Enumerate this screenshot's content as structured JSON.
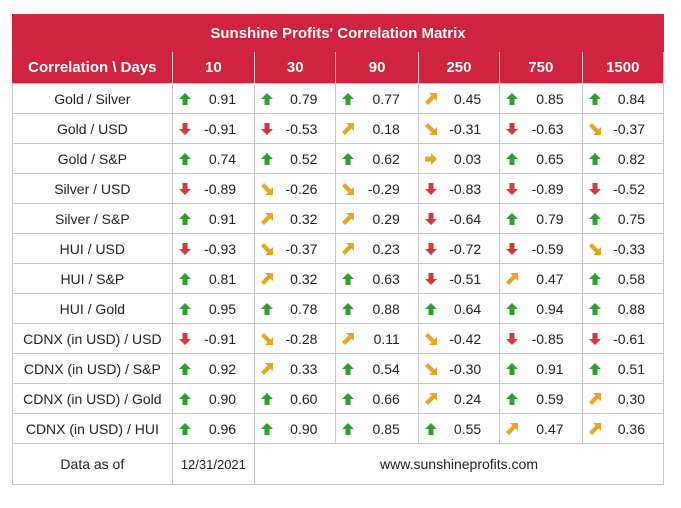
{
  "title": "Sunshine Profits' Correlation Matrix",
  "header": {
    "label_col": "Correlation \\ Days",
    "days": [
      "10",
      "30",
      "90",
      "250",
      "750",
      "1500"
    ]
  },
  "arrow_colors": {
    "up": "#2e9e2e",
    "down": "#d6383a",
    "up-right": "#e9a620",
    "down-right": "#e9a620",
    "right": "#e9a620"
  },
  "rows": [
    {
      "label": "Gold / Silver",
      "cells": [
        {
          "dir": "up",
          "value": "0.91"
        },
        {
          "dir": "up",
          "value": "0.79"
        },
        {
          "dir": "up",
          "value": "0.77"
        },
        {
          "dir": "up-right",
          "value": "0.45"
        },
        {
          "dir": "up",
          "value": "0.85"
        },
        {
          "dir": "up",
          "value": "0.84"
        }
      ]
    },
    {
      "label": "Gold / USD",
      "cells": [
        {
          "dir": "down",
          "value": "-0.91"
        },
        {
          "dir": "down",
          "value": "-0.53"
        },
        {
          "dir": "up-right",
          "value": "0.18"
        },
        {
          "dir": "down-right",
          "value": "-0.31"
        },
        {
          "dir": "down",
          "value": "-0.63"
        },
        {
          "dir": "down-right",
          "value": "-0.37"
        }
      ]
    },
    {
      "label": "Gold / S&P",
      "cells": [
        {
          "dir": "up",
          "value": "0.74"
        },
        {
          "dir": "up",
          "value": "0.52"
        },
        {
          "dir": "up",
          "value": "0.62"
        },
        {
          "dir": "right",
          "value": "0.03"
        },
        {
          "dir": "up",
          "value": "0.65"
        },
        {
          "dir": "up",
          "value": "0.82"
        }
      ]
    },
    {
      "label": "Silver / USD",
      "cells": [
        {
          "dir": "down",
          "value": "-0.89"
        },
        {
          "dir": "down-right",
          "value": "-0.26"
        },
        {
          "dir": "down-right",
          "value": "-0.29"
        },
        {
          "dir": "down",
          "value": "-0.83"
        },
        {
          "dir": "down",
          "value": "-0.89"
        },
        {
          "dir": "down",
          "value": "-0.52"
        }
      ]
    },
    {
      "label": "Silver / S&P",
      "cells": [
        {
          "dir": "up",
          "value": "0.91"
        },
        {
          "dir": "up-right",
          "value": "0.32"
        },
        {
          "dir": "up-right",
          "value": "0.29"
        },
        {
          "dir": "down",
          "value": "-0.64"
        },
        {
          "dir": "up",
          "value": "0.79"
        },
        {
          "dir": "up",
          "value": "0.75"
        }
      ]
    },
    {
      "label": "HUI / USD",
      "cells": [
        {
          "dir": "down",
          "value": "-0.93"
        },
        {
          "dir": "down-right",
          "value": "-0.37"
        },
        {
          "dir": "up-right",
          "value": "0.23"
        },
        {
          "dir": "down",
          "value": "-0.72"
        },
        {
          "dir": "down",
          "value": "-0.59"
        },
        {
          "dir": "down-right",
          "value": "-0.33"
        }
      ]
    },
    {
      "label": "HUI / S&P",
      "cells": [
        {
          "dir": "up",
          "value": "0.81"
        },
        {
          "dir": "up-right",
          "value": "0.32"
        },
        {
          "dir": "up",
          "value": "0.63"
        },
        {
          "dir": "down",
          "value": "-0.51"
        },
        {
          "dir": "up-right",
          "value": "0.47"
        },
        {
          "dir": "up",
          "value": "0.58"
        }
      ]
    },
    {
      "label": "HUI / Gold",
      "cells": [
        {
          "dir": "up",
          "value": "0.95"
        },
        {
          "dir": "up",
          "value": "0.78"
        },
        {
          "dir": "up",
          "value": "0.88"
        },
        {
          "dir": "up",
          "value": "0.64"
        },
        {
          "dir": "up",
          "value": "0.94"
        },
        {
          "dir": "up",
          "value": "0.88"
        }
      ]
    },
    {
      "label": "CDNX (in USD) / USD",
      "cells": [
        {
          "dir": "down",
          "value": "-0.91"
        },
        {
          "dir": "down-right",
          "value": "-0.28"
        },
        {
          "dir": "up-right",
          "value": "0.11"
        },
        {
          "dir": "down-right",
          "value": "-0.42"
        },
        {
          "dir": "down",
          "value": "-0.85"
        },
        {
          "dir": "down",
          "value": "-0.61"
        }
      ]
    },
    {
      "label": "CDNX (in USD) / S&P",
      "cells": [
        {
          "dir": "up",
          "value": "0.92"
        },
        {
          "dir": "up-right",
          "value": "0.33"
        },
        {
          "dir": "up",
          "value": "0.54"
        },
        {
          "dir": "down-right",
          "value": "-0.30"
        },
        {
          "dir": "up",
          "value": "0.91"
        },
        {
          "dir": "up",
          "value": "0.51"
        }
      ]
    },
    {
      "label": "CDNX (in USD) / Gold",
      "cells": [
        {
          "dir": "up",
          "value": "0.90"
        },
        {
          "dir": "up",
          "value": "0.60"
        },
        {
          "dir": "up",
          "value": "0.66"
        },
        {
          "dir": "up-right",
          "value": "0.24"
        },
        {
          "dir": "up",
          "value": "0.59"
        },
        {
          "dir": "up-right",
          "value": "0.30"
        }
      ]
    },
    {
      "label": "CDNX (in USD) / HUI",
      "cells": [
        {
          "dir": "up",
          "value": "0.96"
        },
        {
          "dir": "up",
          "value": "0.90"
        },
        {
          "dir": "up",
          "value": "0.85"
        },
        {
          "dir": "up",
          "value": "0.55"
        },
        {
          "dir": "up-right",
          "value": "0.47"
        },
        {
          "dir": "up-right",
          "value": "0.36"
        }
      ]
    }
  ],
  "footer": {
    "label": "Data as of",
    "date": "12/31/2021",
    "website": "www.sunshineprofits.com"
  }
}
